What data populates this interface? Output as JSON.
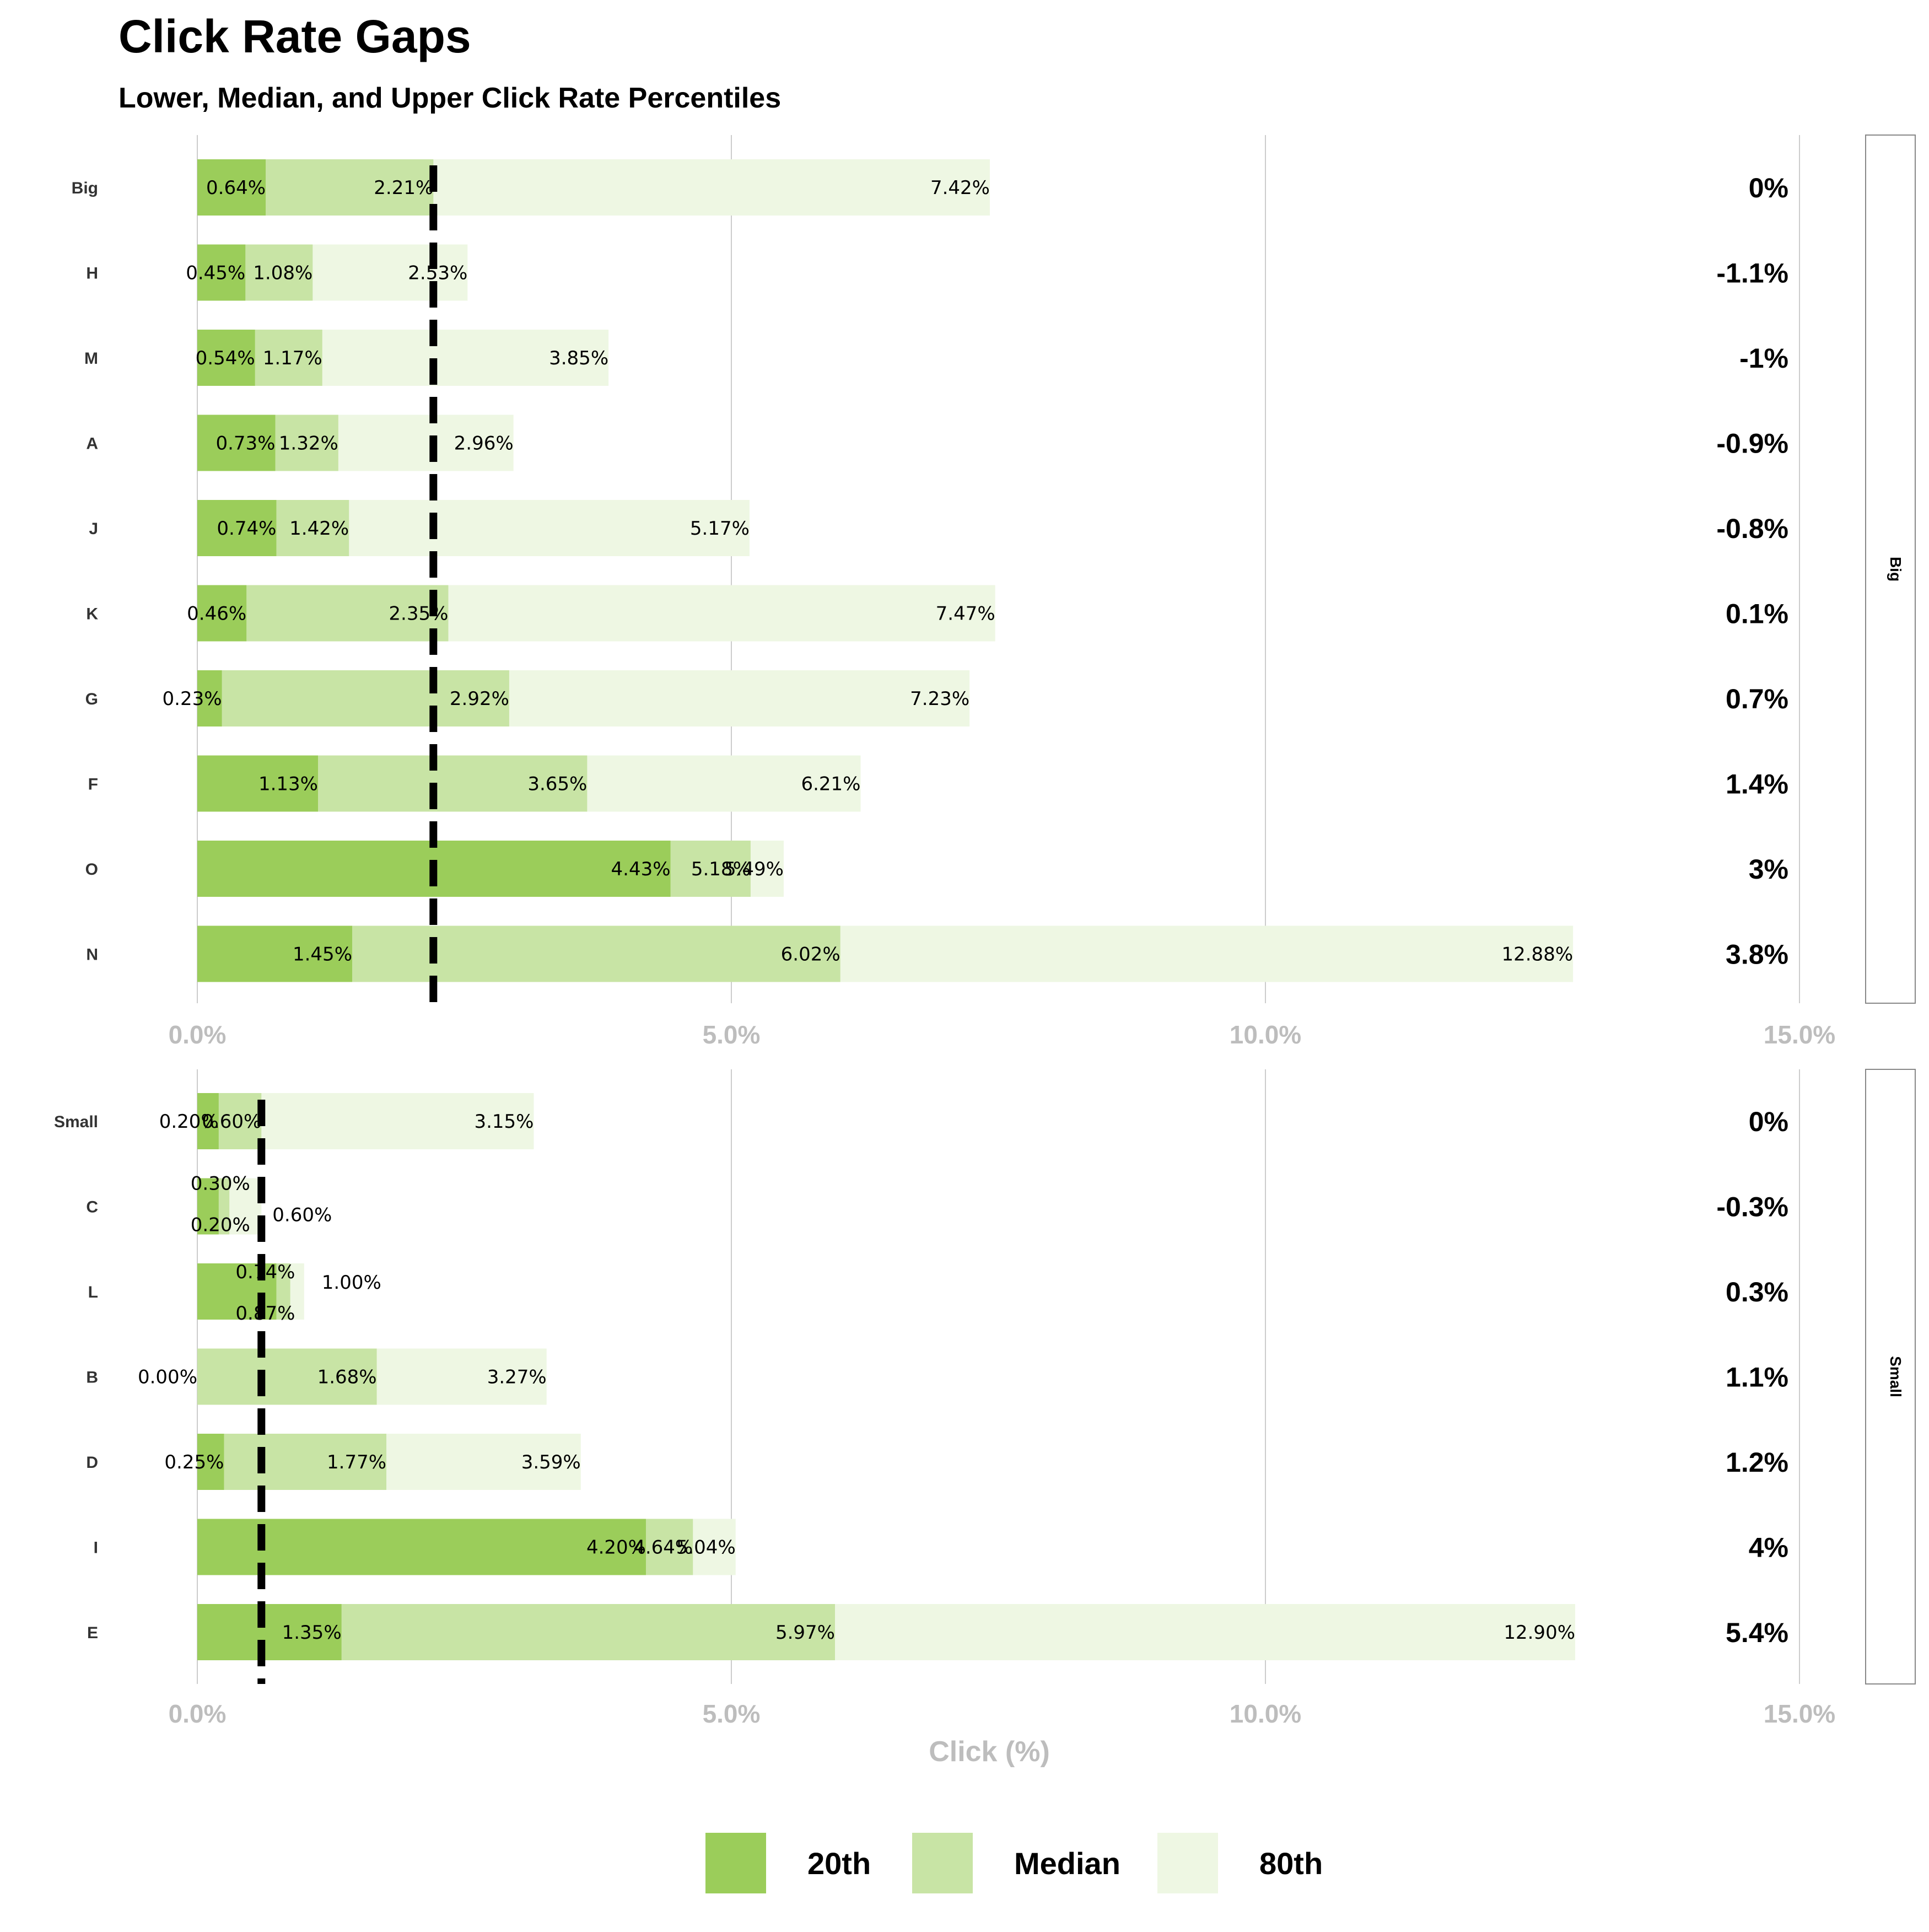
{
  "chart_data": {
    "type": "bar",
    "title": "Click Rate Gaps",
    "subtitle": "Lower, Median, and Upper Click Rate Percentiles",
    "xlabel": "Click (%)",
    "xlim": [
      0,
      15
    ],
    "ticks": [
      0,
      5,
      10,
      15
    ],
    "tick_labels": [
      "0.0%",
      "5.0%",
      "10.0%",
      "15.0%"
    ],
    "colors": {
      "p20": "#9bcd5a",
      "median": "#c8e4a5",
      "p80": "#eef7e3",
      "reference": "#000000",
      "grid": "#cccccc"
    },
    "legend": [
      {
        "key": "p20",
        "label": "20th"
      },
      {
        "key": "median",
        "label": "Median"
      },
      {
        "key": "p80",
        "label": "80th"
      }
    ],
    "legend_position": "bottom",
    "panels": [
      {
        "name": "Big",
        "reference_line": 2.21,
        "rows": [
          {
            "label": "Big",
            "p20": 0.64,
            "median": 2.21,
            "p80": 7.42,
            "p20_label": "0.64%",
            "median_label": "2.21%",
            "p80_label": "7.42%",
            "gap": "0%"
          },
          {
            "label": "H",
            "p20": 0.45,
            "median": 1.08,
            "p80": 2.53,
            "p20_label": "0.45%",
            "median_label": "1.08%",
            "p80_label": "2.53%",
            "gap": "-1.1%"
          },
          {
            "label": "M",
            "p20": 0.54,
            "median": 1.17,
            "p80": 3.85,
            "p20_label": "0.54%",
            "median_label": "1.17%",
            "p80_label": "3.85%",
            "gap": "-1%"
          },
          {
            "label": "A",
            "p20": 0.73,
            "median": 1.32,
            "p80": 2.96,
            "p20_label": "0.73%",
            "median_label": "1.32%",
            "p80_label": "2.96%",
            "gap": "-0.9%"
          },
          {
            "label": "J",
            "p20": 0.74,
            "median": 1.42,
            "p80": 5.17,
            "p20_label": "0.74%",
            "median_label": "1.42%",
            "p80_label": "5.17%",
            "gap": "-0.8%"
          },
          {
            "label": "K",
            "p20": 0.46,
            "median": 2.35,
            "p80": 7.47,
            "p20_label": "0.46%",
            "median_label": "2.35%",
            "p80_label": "7.47%",
            "gap": "0.1%"
          },
          {
            "label": "G",
            "p20": 0.23,
            "median": 2.92,
            "p80": 7.23,
            "p20_label": "0.23%",
            "median_label": "2.92%",
            "p80_label": "7.23%",
            "gap": "0.7%"
          },
          {
            "label": "F",
            "p20": 1.13,
            "median": 3.65,
            "p80": 6.21,
            "p20_label": "1.13%",
            "median_label": "3.65%",
            "p80_label": "6.21%",
            "gap": "1.4%"
          },
          {
            "label": "O",
            "p20": 4.43,
            "median": 5.18,
            "p80": 5.49,
            "p20_label": "4.43%",
            "median_label": "5.18%",
            "p80_label": "5.49%",
            "gap": "3%"
          },
          {
            "label": "N",
            "p20": 1.45,
            "median": 6.02,
            "p80": 12.88,
            "p20_label": "1.45%",
            "median_label": "6.02%",
            "p80_label": "12.88%",
            "gap": "3.8%"
          }
        ]
      },
      {
        "name": "Small",
        "reference_line": 0.6,
        "rows": [
          {
            "label": "Small",
            "p20": 0.2,
            "median": 0.6,
            "p80": 3.15,
            "p20_label": "0.20%",
            "median_label": "0.60%",
            "p80_label": "3.15%",
            "gap": "0%"
          },
          {
            "label": "C",
            "p20": 0.2,
            "median": 0.3,
            "p80": 0.6,
            "p20_label": "0.20%",
            "median_label": "0.30%",
            "p80_label": "0.60%",
            "gap": "-0.3%"
          },
          {
            "label": "L",
            "p20": 0.74,
            "median": 0.87,
            "p80": 1.0,
            "p20_label": "0.74%",
            "median_label": "0.87%",
            "p80_label": "1.00%",
            "gap": "0.3%"
          },
          {
            "label": "B",
            "p20": 0.0,
            "median": 1.68,
            "p80": 3.27,
            "p20_label": "0.00%",
            "median_label": "1.68%",
            "p80_label": "3.27%",
            "gap": "1.1%"
          },
          {
            "label": "D",
            "p20": 0.25,
            "median": 1.77,
            "p80": 3.59,
            "p20_label": "0.25%",
            "median_label": "1.77%",
            "p80_label": "3.59%",
            "gap": "1.2%"
          },
          {
            "label": "I",
            "p20": 4.2,
            "median": 4.64,
            "p80": 5.04,
            "p20_label": "4.20%",
            "median_label": "4.64%",
            "p80_label": "5.04%",
            "gap": "4%"
          },
          {
            "label": "E",
            "p20": 1.35,
            "median": 5.97,
            "p80": 12.9,
            "p20_label": "1.35%",
            "median_label": "5.97%",
            "p80_label": "12.90%",
            "gap": "5.4%"
          }
        ]
      }
    ]
  }
}
